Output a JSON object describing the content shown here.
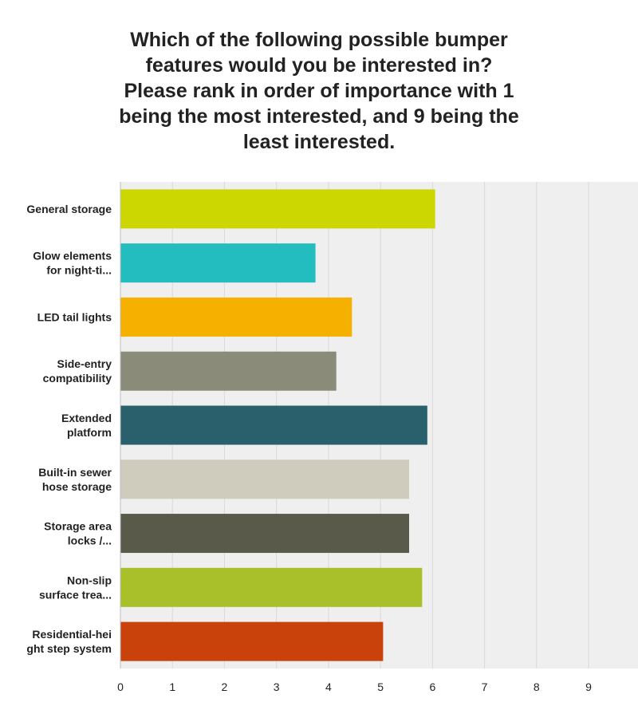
{
  "chart_data": {
    "type": "bar",
    "orientation": "horizontal",
    "title": "Which of the following possible bumper\nfeatures would you be interested in?\nPlease rank in order of importance with 1\nbeing the most interested, and 9 being the\nleast interested.",
    "categories": [
      [
        "General storage"
      ],
      [
        "Glow elements",
        "for night-ti..."
      ],
      [
        "LED tail lights"
      ],
      [
        "Side-entry",
        "compatibility"
      ],
      [
        "Extended",
        "platform"
      ],
      [
        "Built-in sewer",
        "hose storage"
      ],
      [
        "Storage area",
        "locks /..."
      ],
      [
        "Non-slip",
        "surface trea..."
      ],
      [
        "Residential-hei",
        "ght step system"
      ]
    ],
    "values": [
      6.05,
      3.75,
      4.45,
      4.15,
      5.9,
      5.55,
      5.55,
      5.8,
      5.05
    ],
    "colors": [
      "#ccd600",
      "#24bdbf",
      "#f6b000",
      "#8a8b78",
      "#2a5f6c",
      "#cfccbd",
      "#5a5a4b",
      "#a9c02a",
      "#c9410b"
    ],
    "xlim": [
      0,
      9.95
    ],
    "xticks": [
      0,
      1,
      2,
      3,
      4,
      5,
      6,
      7,
      8,
      9
    ],
    "grid": true,
    "legend": "none",
    "xlabel": "",
    "ylabel": ""
  }
}
